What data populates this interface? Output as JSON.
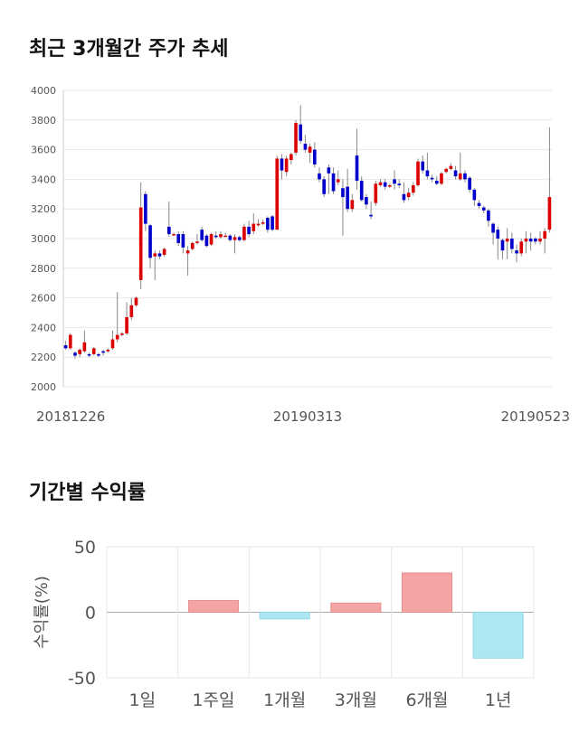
{
  "section1": {
    "title": "최근 3개월간 주가 추세"
  },
  "section2": {
    "title": "기간별 수익률"
  },
  "chart_data": [
    {
      "type": "candlestick",
      "ylim": [
        2000,
        4000
      ],
      "yticks": [
        2000,
        2200,
        2400,
        2600,
        2800,
        3000,
        3200,
        3400,
        3600,
        3800,
        4000
      ],
      "xtick_labels": [
        "20181226",
        "20190313",
        "20190523"
      ],
      "colors": {
        "up": "#dd0000",
        "down": "#0000cc",
        "wick": "#888888"
      },
      "grid": true,
      "candles": [
        [
          2280,
          2260,
          2310,
          2250
        ],
        [
          2260,
          2350,
          2360,
          2250
        ],
        [
          2230,
          2210,
          2240,
          2190
        ],
        [
          2220,
          2250,
          2260,
          2200
        ],
        [
          2240,
          2300,
          2380,
          2230
        ],
        [
          2220,
          2210,
          2230,
          2200
        ],
        [
          2220,
          2260,
          2270,
          2210
        ],
        [
          2220,
          2210,
          2230,
          2200
        ],
        [
          2240,
          2230,
          2250,
          2210
        ],
        [
          2240,
          2250,
          2260,
          2230
        ],
        [
          2260,
          2320,
          2380,
          2250
        ],
        [
          2320,
          2350,
          2640,
          2300
        ],
        [
          2350,
          2360,
          2370,
          2340
        ],
        [
          2360,
          2470,
          2570,
          2350
        ],
        [
          2470,
          2550,
          2600,
          2450
        ],
        [
          2550,
          2600,
          2610,
          2540
        ],
        [
          2720,
          3210,
          3380,
          2660
        ],
        [
          3300,
          3100,
          3320,
          3050
        ],
        [
          3090,
          2870,
          3100,
          2800
        ],
        [
          2880,
          2900,
          2920,
          2720
        ],
        [
          2900,
          2880,
          2920,
          2860
        ],
        [
          2890,
          2930,
          2940,
          2880
        ],
        [
          3080,
          3030,
          3250,
          3010
        ],
        [
          3030,
          3030,
          3040,
          3020
        ],
        [
          3030,
          2970,
          3050,
          2950
        ],
        [
          3030,
          2940,
          3050,
          2900
        ],
        [
          2900,
          2920,
          2950,
          2750
        ],
        [
          2930,
          2970,
          2980,
          2920
        ],
        [
          2970,
          2980,
          3030,
          2960
        ],
        [
          3060,
          2990,
          3080,
          2980
        ],
        [
          3020,
          2950,
          3030,
          2940
        ],
        [
          2960,
          3030,
          3040,
          2950
        ],
        [
          3020,
          3010,
          3050,
          3000
        ],
        [
          3010,
          3030,
          3050,
          3000
        ],
        [
          3020,
          3020,
          3040,
          3010
        ],
        [
          3020,
          2990,
          3030,
          2980
        ],
        [
          2990,
          3010,
          3030,
          2900
        ],
        [
          3010,
          2990,
          3020,
          2980
        ],
        [
          2990,
          3080,
          3100,
          2980
        ],
        [
          3080,
          3030,
          3120,
          3010
        ],
        [
          3050,
          3100,
          3170,
          3030
        ],
        [
          3090,
          3100,
          3130,
          3080
        ],
        [
          3100,
          3110,
          3130,
          3090
        ],
        [
          3140,
          3060,
          3150,
          3040
        ],
        [
          3150,
          3060,
          3160,
          3050
        ],
        [
          3060,
          3540,
          3560,
          3060
        ],
        [
          3540,
          3460,
          3570,
          3400
        ],
        [
          3450,
          3540,
          3560,
          3420
        ],
        [
          3530,
          3570,
          3580,
          3500
        ],
        [
          3580,
          3780,
          3800,
          3560
        ],
        [
          3770,
          3660,
          3900,
          3640
        ],
        [
          3640,
          3600,
          3700,
          3580
        ],
        [
          3580,
          3620,
          3640,
          3510
        ],
        [
          3600,
          3500,
          3650,
          3480
        ],
        [
          3440,
          3400,
          3480,
          3380
        ],
        [
          3400,
          3300,
          3420,
          3280
        ],
        [
          3480,
          3440,
          3500,
          3300
        ],
        [
          3440,
          3320,
          3480,
          3300
        ],
        [
          3380,
          3400,
          3460,
          3360
        ],
        [
          3340,
          3280,
          3400,
          3020
        ],
        [
          3350,
          3200,
          3470,
          3180
        ],
        [
          3200,
          3260,
          3300,
          3180
        ],
        [
          3560,
          3390,
          3740,
          3330
        ],
        [
          3390,
          3260,
          3420,
          3250
        ],
        [
          3280,
          3230,
          3300,
          3200
        ],
        [
          3160,
          3150,
          3250,
          3130
        ],
        [
          3240,
          3370,
          3390,
          3220
        ],
        [
          3360,
          3380,
          3400,
          3350
        ],
        [
          3380,
          3350,
          3400,
          3330
        ],
        [
          3350,
          3360,
          3370,
          3340
        ],
        [
          3400,
          3370,
          3460,
          3330
        ],
        [
          3370,
          3360,
          3400,
          3340
        ],
        [
          3300,
          3260,
          3380,
          3240
        ],
        [
          3280,
          3310,
          3340,
          3260
        ],
        [
          3310,
          3360,
          3380,
          3290
        ],
        [
          3360,
          3520,
          3540,
          3350
        ],
        [
          3520,
          3460,
          3560,
          3440
        ],
        [
          3460,
          3420,
          3580,
          3400
        ],
        [
          3410,
          3400,
          3430,
          3380
        ],
        [
          3390,
          3370,
          3420,
          3360
        ],
        [
          3370,
          3440,
          3450,
          3360
        ],
        [
          3450,
          3470,
          3480,
          3440
        ],
        [
          3470,
          3490,
          3510,
          3460
        ],
        [
          3460,
          3420,
          3490,
          3400
        ],
        [
          3400,
          3440,
          3580,
          3390
        ],
        [
          3440,
          3400,
          3460,
          3380
        ],
        [
          3410,
          3330,
          3420,
          3310
        ],
        [
          3330,
          3260,
          3340,
          3220
        ],
        [
          3240,
          3220,
          3260,
          3200
        ],
        [
          3210,
          3190,
          3220,
          3170
        ],
        [
          3190,
          3120,
          3200,
          3080
        ],
        [
          3100,
          3040,
          3110,
          2960
        ],
        [
          3060,
          3000,
          3080,
          2860
        ],
        [
          2990,
          2920,
          3000,
          2860
        ],
        [
          2980,
          3000,
          3070,
          2860
        ],
        [
          3000,
          2930,
          3040,
          2900
        ],
        [
          2920,
          2900,
          2960,
          2840
        ],
        [
          2900,
          2980,
          3000,
          2880
        ],
        [
          2980,
          3000,
          3050,
          2900
        ],
        [
          3000,
          2980,
          3040,
          2920
        ],
        [
          3000,
          2980,
          3010,
          2960
        ],
        [
          2980,
          3000,
          3050,
          2960
        ],
        [
          3000,
          3050,
          3070,
          2900
        ],
        [
          3060,
          3280,
          3750,
          3040
        ]
      ]
    },
    {
      "type": "bar",
      "categories": [
        "1일",
        "1주일",
        "1개월",
        "3개월",
        "6개월",
        "1년"
      ],
      "values": [
        0,
        9,
        -5,
        7,
        30,
        -35
      ],
      "ylabel": "수익률(%)",
      "ylim": [
        -50,
        50
      ],
      "yticks": [
        50,
        0,
        -50
      ],
      "colors": {
        "positive": "#f4a4a4",
        "negative": "#ade8f2"
      },
      "grid": true
    }
  ]
}
